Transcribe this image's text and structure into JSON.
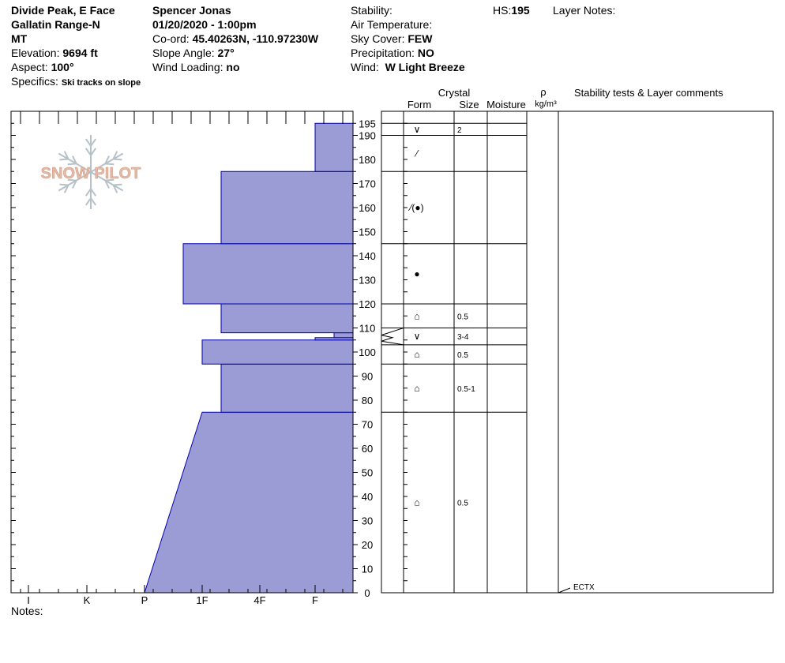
{
  "header": {
    "col1": {
      "location": "Divide Peak, E Face",
      "range": "Gallatin Range-N",
      "state": "MT",
      "elevation_label": "Elevation:",
      "elevation_value": "9694 ft",
      "aspect_label": "Aspect:",
      "aspect_value": "100°",
      "specifics_label": "Specifics:",
      "specifics_value": "Ski tracks on slope"
    },
    "col2": {
      "observer": "Spencer Jonas",
      "datetime": "01/20/2020 - 1:00pm",
      "coord_label": "Co-ord:",
      "coord_value": "45.40263N, -110.97230W",
      "slope_label": "Slope Angle:",
      "slope_value": "27°",
      "wind_loading_label": "Wind Loading:",
      "wind_loading_value": "no"
    },
    "col3": {
      "stability_label": "Stability:",
      "air_temp_label": "Air Temperature:",
      "sky_label": "Sky Cover:",
      "sky_value": "FEW",
      "precip_label": "Precipitation:",
      "precip_value": "NO",
      "wind_label": "Wind:",
      "wind_value": "W Light Breeze"
    },
    "col4": {
      "hs_label": "HS:",
      "hs_value": "195",
      "layer_notes_label": "Layer Notes:"
    }
  },
  "logo": {
    "text": "SNOW PILOT"
  },
  "notes_label": "Notes:",
  "colors": {
    "hardness_fill": "#9b9bd6",
    "hardness_stroke": "#0000aa",
    "logo_color": "#e7b9a4"
  },
  "chart_data": {
    "type": "snow-profile",
    "hardness_axis": {
      "ticks": [
        "I",
        "K",
        "P",
        "1F",
        "4F",
        "F"
      ]
    },
    "depth_axis": {
      "min": 0,
      "max": 200,
      "unit": "cm",
      "tick_labels": [
        0,
        10,
        20,
        30,
        40,
        50,
        60,
        70,
        80,
        90,
        100,
        110,
        120,
        130,
        140,
        150,
        160,
        170,
        180,
        190,
        195
      ]
    },
    "table_headers": {
      "crystal": "Crystal",
      "form": "Form",
      "size": "Size",
      "moisture": "Moisture",
      "rho": "ρ",
      "density_unit": "kg/m³",
      "comments": "Stability tests & Layer comments"
    },
    "hardness_layers": [
      {
        "top": 75,
        "bottom": 0,
        "hardness_top": "1F",
        "hardness_bottom": "P"
      },
      {
        "top": 95,
        "bottom": 75,
        "hardness": "1F+"
      },
      {
        "top": 105,
        "bottom": 95,
        "hardness": "1F"
      },
      {
        "top": 106,
        "bottom": 105,
        "hardness": "F"
      },
      {
        "top": 108,
        "bottom": 106,
        "hardness": "F+"
      },
      {
        "top": 120,
        "bottom": 108,
        "hardness": "1F+"
      },
      {
        "top": 145,
        "bottom": 120,
        "hardness": "1F-"
      },
      {
        "top": 175,
        "bottom": 145,
        "hardness": "1F+"
      },
      {
        "top": 195,
        "bottom": 175,
        "hardness": "F"
      }
    ],
    "crystal_layers": [
      {
        "top": 195,
        "bottom": 190,
        "form": "∨",
        "size": "2"
      },
      {
        "top": 190,
        "bottom": 175,
        "form": "⁄",
        "size": ""
      },
      {
        "top": 175,
        "bottom": 145,
        "form": "⁄(●)",
        "size": ""
      },
      {
        "top": 145,
        "bottom": 120,
        "form": "●",
        "size": ""
      },
      {
        "top": 120,
        "bottom": 110,
        "form": "⌂",
        "size": "0.5"
      },
      {
        "top": 110,
        "bottom": 103,
        "form": "∨",
        "size": "3-4"
      },
      {
        "top": 103,
        "bottom": 95,
        "form": "⌂",
        "size": "0.5"
      },
      {
        "top": 95,
        "bottom": 75,
        "form": "⌂",
        "size": "0.5-1"
      },
      {
        "top": 75,
        "bottom": 0,
        "form": "⌂",
        "size": "0.5"
      }
    ],
    "stability_tests": [
      {
        "depth": 0,
        "label": "ECTX"
      }
    ]
  }
}
